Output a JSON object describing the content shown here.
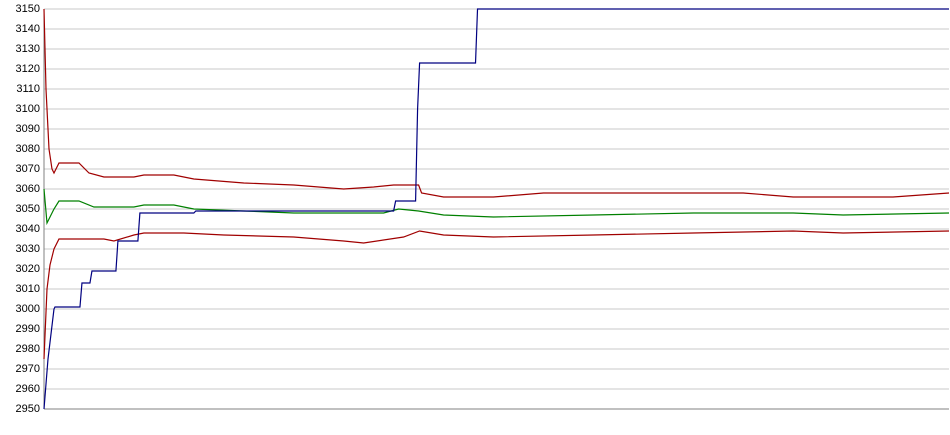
{
  "chart_data": {
    "type": "line",
    "xlim": [
      0,
      906
    ],
    "ylim": [
      2950,
      3150
    ],
    "yticks": [
      2950,
      2960,
      2970,
      2980,
      2990,
      3000,
      3010,
      3020,
      3030,
      3040,
      3050,
      3060,
      3070,
      3080,
      3090,
      3100,
      3110,
      3120,
      3130,
      3140,
      3150
    ],
    "grid": true,
    "series": [
      {
        "color": "#a00000",
        "x": [
          0,
          2,
          5,
          8,
          10,
          15,
          35,
          45,
          60,
          90,
          100,
          130,
          150,
          200,
          250,
          300,
          330,
          350,
          375,
          378,
          400,
          450,
          500,
          700,
          750,
          850,
          906
        ],
        "values": [
          3150,
          3110,
          3080,
          3070,
          3068,
          3073,
          3073,
          3068,
          3066,
          3066,
          3067,
          3067,
          3065,
          3063,
          3062,
          3060,
          3061,
          3062,
          3062,
          3058,
          3056,
          3056,
          3058,
          3058,
          3056,
          3056,
          3058
        ]
      },
      {
        "color": "#008000",
        "x": [
          0,
          3,
          6,
          10,
          15,
          35,
          50,
          90,
          100,
          130,
          150,
          200,
          250,
          340,
          355,
          375,
          400,
          450,
          550,
          650,
          750,
          800,
          906
        ],
        "values": [
          3060,
          3043,
          3046,
          3050,
          3054,
          3054,
          3051,
          3051,
          3052,
          3052,
          3050,
          3049,
          3048,
          3048,
          3050,
          3049,
          3047,
          3046,
          3047,
          3048,
          3048,
          3047,
          3048
        ]
      },
      {
        "color": "#a00000",
        "x": [
          0,
          3,
          6,
          10,
          15,
          60,
          70,
          90,
          100,
          140,
          180,
          250,
          300,
          320,
          360,
          376,
          400,
          450,
          550,
          650,
          750,
          800,
          906
        ],
        "values": [
          2975,
          3010,
          3022,
          3030,
          3035,
          3035,
          3034,
          3037,
          3038,
          3038,
          3037,
          3036,
          3034,
          3033,
          3036,
          3039,
          3037,
          3036,
          3037,
          3038,
          3039,
          3038,
          3039
        ]
      },
      {
        "color": "#000080",
        "x": [
          0,
          4,
          10,
          11,
          36,
          38,
          46,
          48,
          72,
          74,
          94,
          96,
          150,
          152,
          350,
          352,
          372,
          374,
          376,
          432,
          434,
          906
        ],
        "values": [
          2950,
          2975,
          3000,
          3001,
          3001,
          3013,
          3013,
          3019,
          3019,
          3034,
          3034,
          3048,
          3048,
          3049,
          3049,
          3054,
          3054,
          3100,
          3123,
          3123,
          3150,
          3150
        ]
      }
    ]
  }
}
